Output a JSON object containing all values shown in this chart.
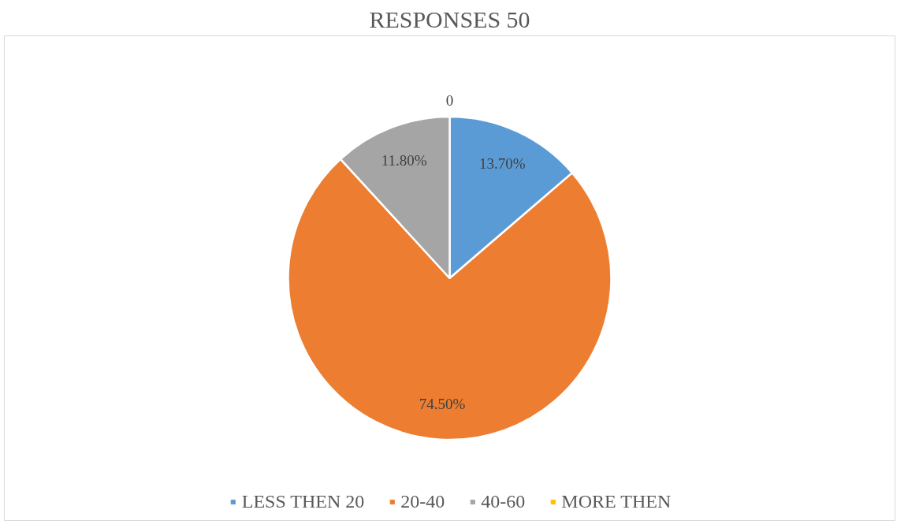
{
  "chart_data": {
    "type": "pie",
    "title": "RESPONSES 50",
    "categories": [
      "LESS THEN 20",
      "20-40",
      "40-60",
      "MORE THEN"
    ],
    "values": [
      13.7,
      74.5,
      11.8,
      0
    ],
    "value_labels": [
      "13.70%",
      "74.50%",
      "11.80%",
      "0"
    ],
    "colors": [
      "#5b9bd5",
      "#ed7d31",
      "#a5a5a5",
      "#ffc000"
    ],
    "legend": "bottom"
  }
}
